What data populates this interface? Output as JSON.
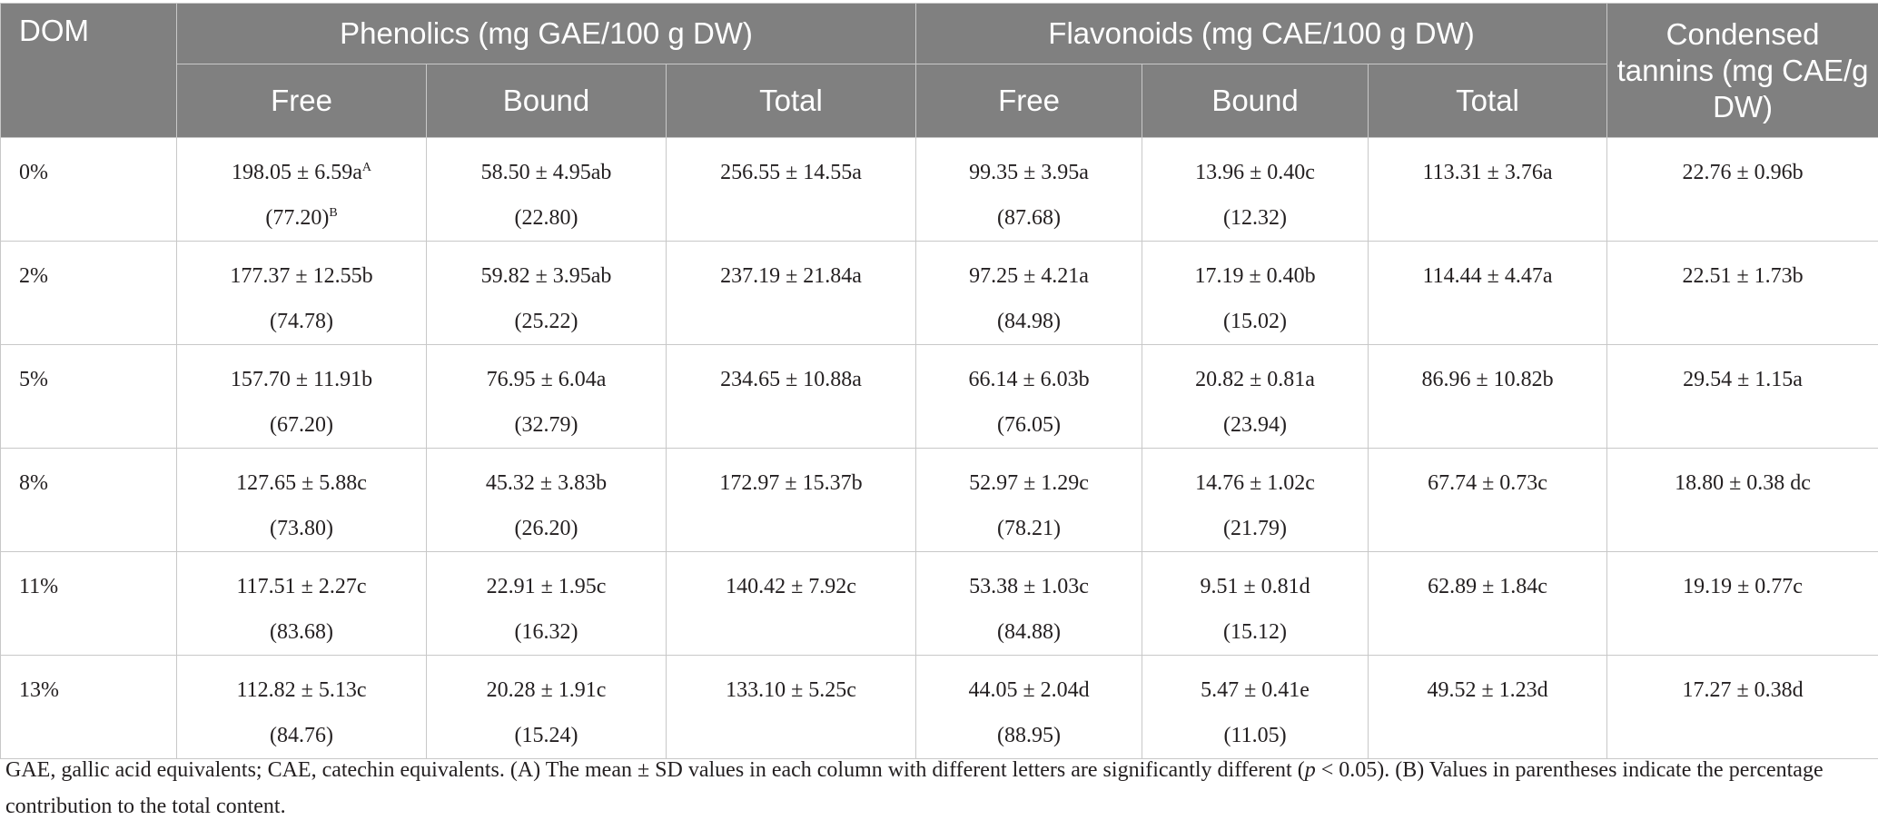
{
  "header": {
    "dom": "DOM",
    "phenolics_group": "Phenolics (mg GAE/100 g DW)",
    "flavonoids_group": "Flavonoids (mg CAE/100 g DW)",
    "tannins": "Condensed tannins (mg CAE/g DW)",
    "sub_free": "Free",
    "sub_bound": "Bound",
    "sub_total": "Total"
  },
  "rows": [
    {
      "dom": "0%",
      "ph_free": "198.05 ± 6.59a",
      "ph_free_sup": "A",
      "ph_free_pct": "(77.20)",
      "ph_free_pct_sup": "B",
      "ph_bound": "58.50 ± 4.95ab",
      "ph_bound_pct": "(22.80)",
      "ph_total": "256.55 ± 14.55a",
      "fl_free": "99.35 ± 3.95a",
      "fl_free_pct": "(87.68)",
      "fl_bound": "13.96 ± 0.40c",
      "fl_bound_pct": "(12.32)",
      "fl_total": "113.31 ± 3.76a",
      "tannins": "22.76 ± 0.96b"
    },
    {
      "dom": "2%",
      "ph_free": "177.37 ± 12.55b",
      "ph_free_pct": "(74.78)",
      "ph_bound": "59.82 ± 3.95ab",
      "ph_bound_pct": "(25.22)",
      "ph_total": "237.19 ± 21.84a",
      "fl_free": "97.25 ± 4.21a",
      "fl_free_pct": "(84.98)",
      "fl_bound": "17.19 ± 0.40b",
      "fl_bound_pct": "(15.02)",
      "fl_total": "114.44 ± 4.47a",
      "tannins": "22.51 ± 1.73b"
    },
    {
      "dom": "5%",
      "ph_free": "157.70 ± 11.91b",
      "ph_free_pct": "(67.20)",
      "ph_bound": "76.95 ± 6.04a",
      "ph_bound_pct": "(32.79)",
      "ph_total": "234.65 ± 10.88a",
      "fl_free": "66.14 ± 6.03b",
      "fl_free_pct": "(76.05)",
      "fl_bound": "20.82 ± 0.81a",
      "fl_bound_pct": "(23.94)",
      "fl_total": "86.96 ± 10.82b",
      "tannins": "29.54 ± 1.15a"
    },
    {
      "dom": "8%",
      "ph_free": "127.65 ± 5.88c",
      "ph_free_pct": "(73.80)",
      "ph_bound": "45.32 ± 3.83b",
      "ph_bound_pct": "(26.20)",
      "ph_total": "172.97 ± 15.37b",
      "fl_free": "52.97 ± 1.29c",
      "fl_free_pct": "(78.21)",
      "fl_bound": "14.76 ± 1.02c",
      "fl_bound_pct": "(21.79)",
      "fl_total": "67.74 ± 0.73c",
      "tannins": "18.80 ± 0.38 dc"
    },
    {
      "dom": "11%",
      "ph_free": "117.51 ± 2.27c",
      "ph_free_pct": "(83.68)",
      "ph_bound": "22.91 ± 1.95c",
      "ph_bound_pct": "(16.32)",
      "ph_total": "140.42 ± 7.92c",
      "fl_free": "53.38 ± 1.03c",
      "fl_free_pct": "(84.88)",
      "fl_bound": "9.51 ± 0.81d",
      "fl_bound_pct": "(15.12)",
      "fl_total": "62.89 ± 1.84c",
      "tannins": "19.19 ± 0.77c"
    },
    {
      "dom": "13%",
      "ph_free": "112.82 ± 5.13c",
      "ph_free_pct": "(84.76)",
      "ph_bound": "20.28 ± 1.91c",
      "ph_bound_pct": "(15.24)",
      "ph_total": "133.10 ± 5.25c",
      "fl_free": "44.05 ± 2.04d",
      "fl_free_pct": "(88.95)",
      "fl_bound": "5.47 ± 0.41e",
      "fl_bound_pct": "(11.05)",
      "fl_total": "49.52 ± 1.23d",
      "tannins": "17.27 ± 0.38d"
    }
  ],
  "footnote": {
    "part1": "GAE, gallic acid equivalents; CAE, catechin equivalents. (A) The mean ± SD values in each column with different letters are significantly different (",
    "p": "p",
    "part2": " < 0.05). (B) Values in parentheses indicate the percentage contribution to the total content."
  }
}
